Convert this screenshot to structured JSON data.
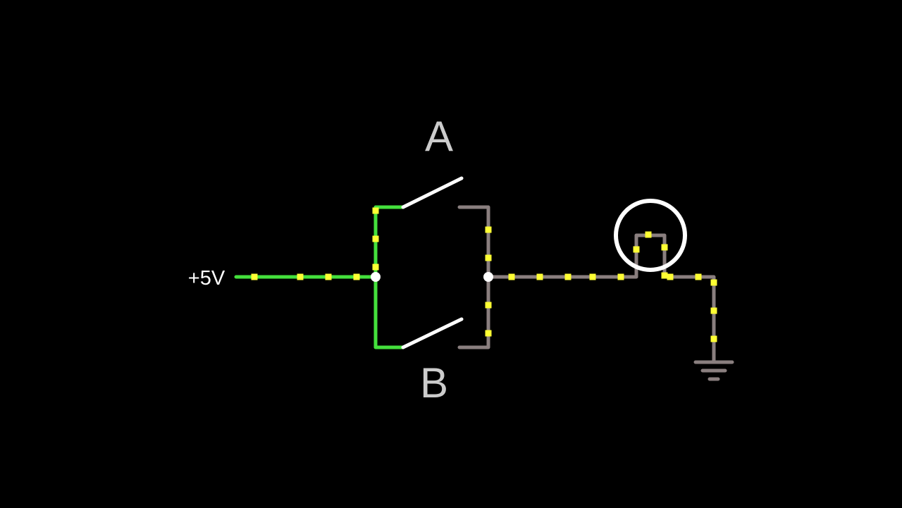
{
  "labels": {
    "supply": "+5V",
    "switch_a": "A",
    "switch_b": "B"
  }
}
